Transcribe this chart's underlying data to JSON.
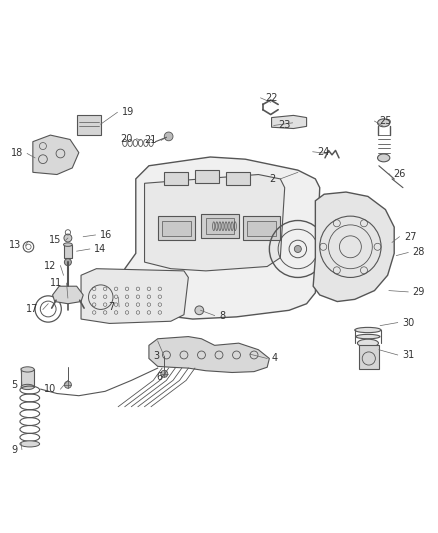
{
  "title": "",
  "background_color": "#ffffff",
  "fig_width": 4.38,
  "fig_height": 5.33,
  "dpi": 100,
  "line_color": "#555555",
  "text_color": "#333333",
  "font_size": 7
}
